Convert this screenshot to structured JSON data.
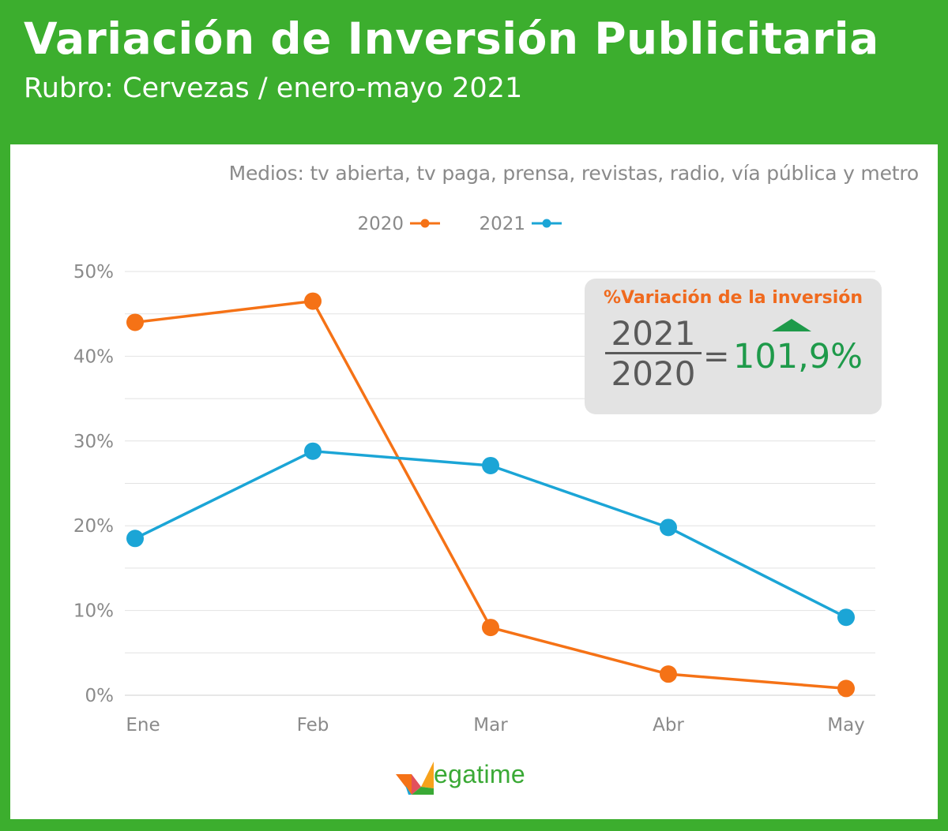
{
  "header": {
    "title": "Variación de Inversión Publicitaria",
    "subtitle": "Rubro: Cervezas / enero-mayo 2021"
  },
  "chart_note": "Medios: tv abierta, tv paga, prensa, revistas, radio, vía pública y metro",
  "colors": {
    "background": "#3cae2e",
    "series_2020": "#f57216",
    "series_2021": "#1ba5d6",
    "variation_title": "#f06a1e",
    "variation_value": "#1e9a4a"
  },
  "callout": {
    "title": "%Variación de la inversión",
    "numerator": "2021",
    "denominator": "2020",
    "equals": "=",
    "value": "101,9%",
    "arrow_icon": "up-triangle-icon"
  },
  "logo": {
    "icon": "megatime-m-logo-icon",
    "text": "egatime"
  },
  "chart_data": {
    "type": "line",
    "categories": [
      "Ene",
      "Feb",
      "Mar",
      "Abr",
      "May"
    ],
    "series": [
      {
        "name": "2020",
        "values": [
          44.0,
          46.5,
          8.0,
          2.5,
          0.8
        ]
      },
      {
        "name": "2021",
        "values": [
          18.5,
          28.8,
          27.1,
          19.8,
          9.2
        ]
      }
    ],
    "y_ticks": [
      "0%",
      "10%",
      "20%",
      "30%",
      "40%",
      "50%"
    ],
    "ylim": [
      0,
      50
    ],
    "grid": true,
    "minor_grid": true,
    "legend_position": "top-center",
    "title": "",
    "xlabel": "",
    "ylabel": ""
  }
}
